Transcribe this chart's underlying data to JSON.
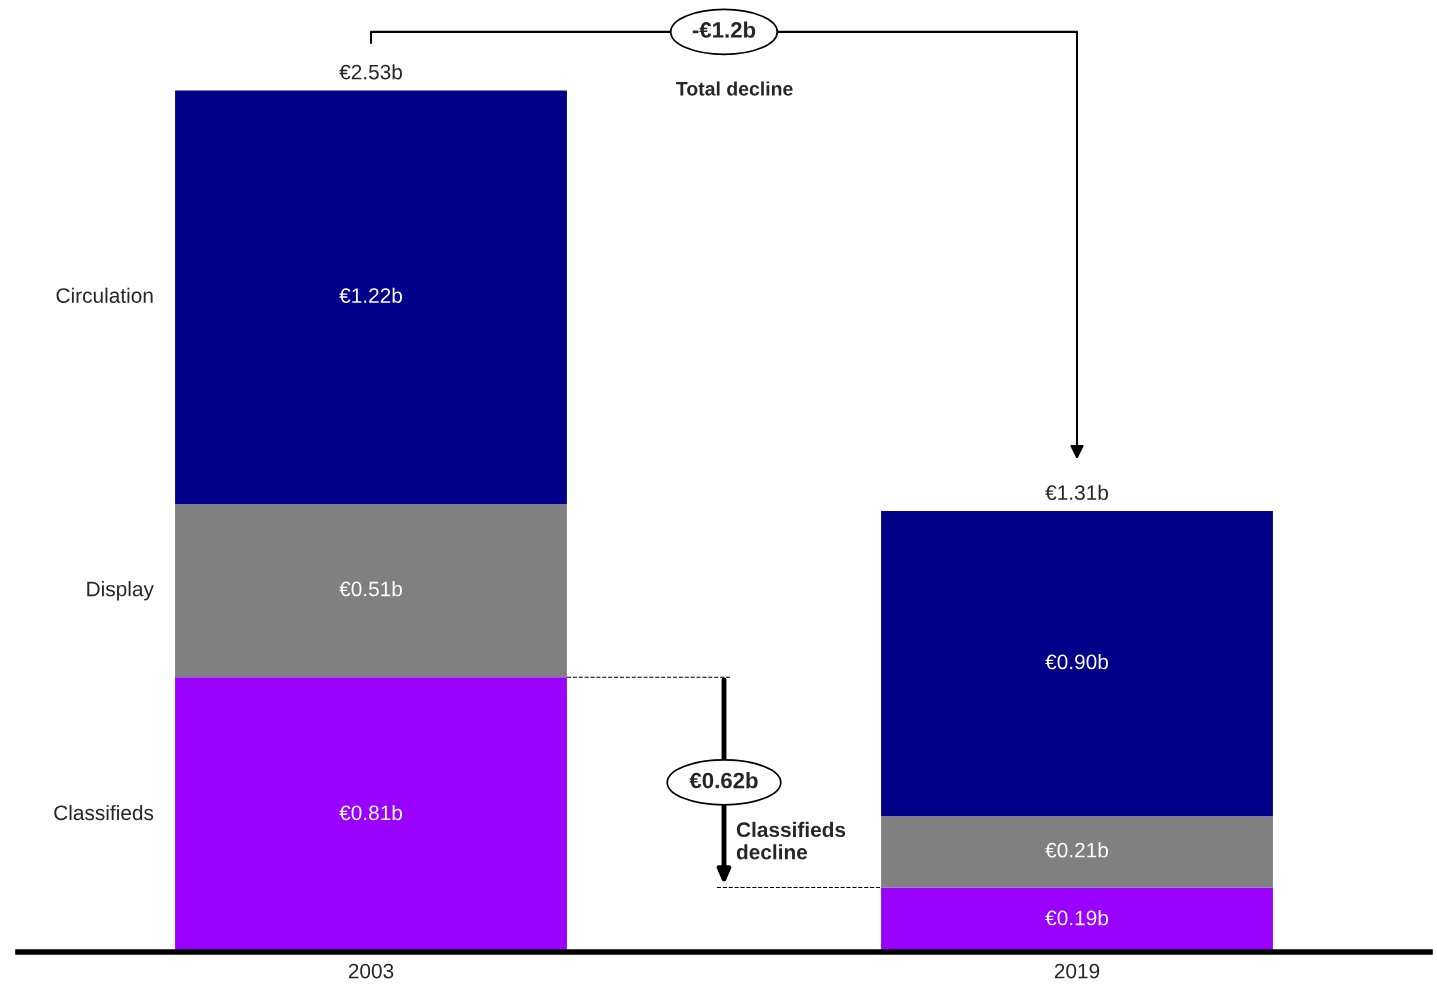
{
  "chart_data": {
    "type": "bar",
    "stacked": true,
    "categories": [
      "2003",
      "2019"
    ],
    "series": [
      {
        "name": "Classifieds",
        "color": "#9900ff",
        "values": [
          0.81,
          0.19
        ],
        "value_labels": [
          "€0.81b",
          "€0.19b"
        ]
      },
      {
        "name": "Display",
        "color": "#808080",
        "values": [
          0.51,
          0.21
        ],
        "value_labels": [
          "€0.51b",
          "€0.21b"
        ]
      },
      {
        "name": "Circulation",
        "color": "#000088",
        "values": [
          1.22,
          0.9
        ],
        "value_labels": [
          "€1.22b",
          "€0.90b"
        ]
      }
    ],
    "totals": [
      "€2.53b",
      "€1.31b"
    ],
    "annotations": [
      "-€1.2b",
      "Total decline",
      "€0.62b",
      "Classifieds\ndecline"
    ],
    "ref_lines": [
      {
        "axis": "y",
        "value": 0.81,
        "line_style": "dashed",
        "color": "#000000"
      },
      {
        "axis": "y",
        "value": 0.19,
        "line_style": "dashed",
        "color": "#000000"
      }
    ],
    "legend": false,
    "grid": false
  }
}
